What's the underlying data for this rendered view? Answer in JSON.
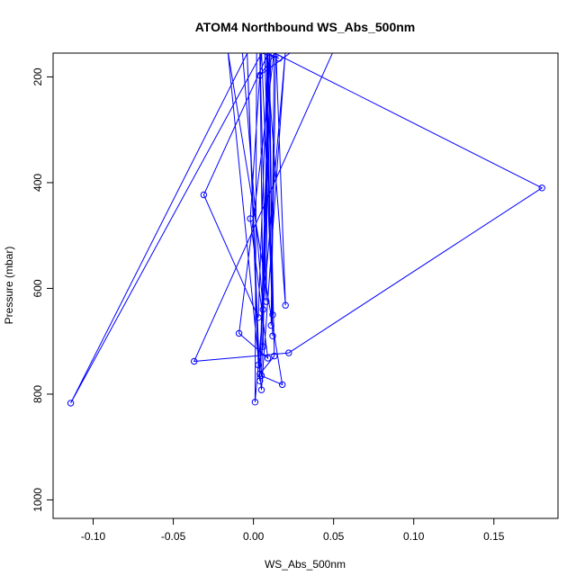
{
  "chart_data": {
    "type": "line",
    "title": "ATOM4 Northbound WS_Abs_500nm",
    "xlabel": "WS_Abs_500nm",
    "ylabel": "Pressure (mbar)",
    "xlim": [
      -0.125,
      0.19
    ],
    "ylim": [
      1035,
      155
    ],
    "y_reversed": true,
    "x_ticks": [
      -0.1,
      -0.05,
      0.0,
      0.05,
      0.1,
      0.15
    ],
    "x_tick_labels": [
      "-0.10",
      "-0.05",
      "0.00",
      "0.05",
      "0.10",
      "0.15"
    ],
    "y_ticks": [
      200,
      400,
      600,
      800,
      1000
    ],
    "y_tick_labels": [
      "200",
      "400",
      "600",
      "800",
      "1000"
    ],
    "grid": false,
    "color": "#0000ff",
    "series": [
      {
        "x": [
          -0.007,
          0.006,
          0.004,
          0.008,
          0.009,
          0.003,
          -0.031,
          0.01,
          0.012,
          0.005,
          -0.002,
          0.009,
          -0.009,
          0.013,
          0.011,
          0.014,
          0.02,
          0.008,
          0.012,
          0.007,
          0.05,
          -0.037,
          0.022,
          0.18,
          0.01,
          0.004,
          0.013,
          0.009,
          0.006,
          0.003,
          -0.004,
          0.004,
          0.011,
          0.005,
          0.018,
          -0.016,
          0.005,
          0.02,
          0.001,
          0.002,
          -0.003,
          -0.114,
          0.006,
          -0.015,
          0.025,
          0.004,
          0.015,
          0.005,
          0.016,
          0.0
        ],
        "y": [
          150,
          640,
          150,
          625,
          150,
          655,
          423,
          150,
          650,
          150,
          468,
          732,
          685,
          150,
          670,
          150,
          632,
          150,
          690,
          150,
          150,
          738,
          722,
          410,
          150,
          762,
          728,
          150,
          710,
          745,
          150,
          775,
          150,
          765,
          782,
          150,
          792,
          150,
          815,
          150,
          150,
          817,
          150,
          150,
          150,
          197,
          150,
          150,
          165,
          150
        ]
      }
    ]
  }
}
